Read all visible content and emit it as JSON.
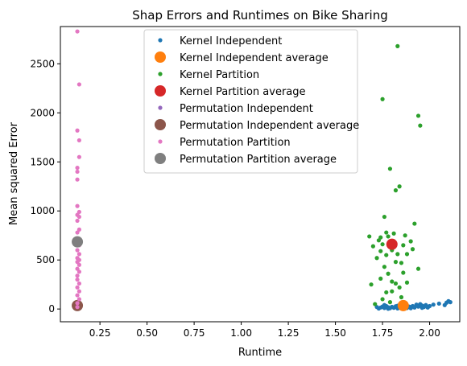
{
  "chart_data": {
    "type": "scatter",
    "title": "Shap Errors and Runtimes on Bike Sharing",
    "xlabel": "Runtime",
    "ylabel": "Mean squared Error",
    "xlim": [
      0.04,
      2.16
    ],
    "ylim": [
      -130,
      2880
    ],
    "xticks": [
      0.25,
      0.5,
      0.75,
      1.0,
      1.25,
      1.5,
      1.75,
      2.0
    ],
    "xtick_labels": [
      "0.25",
      "0.50",
      "0.75",
      "1.00",
      "1.25",
      "1.50",
      "1.75",
      "2.00"
    ],
    "yticks": [
      0,
      500,
      1000,
      1500,
      2000,
      2500
    ],
    "ytick_labels": [
      "0",
      "500",
      "1000",
      "1500",
      "2000",
      "2500"
    ],
    "grid": false,
    "legend_position": "top-center",
    "series": [
      {
        "name": "Kernel Independent",
        "color": "#1f77b4",
        "marker": "small",
        "points": [
          [
            1.72,
            20
          ],
          [
            1.73,
            5
          ],
          [
            1.74,
            15
          ],
          [
            1.75,
            25
          ],
          [
            1.76,
            10
          ],
          [
            1.77,
            30
          ],
          [
            1.78,
            18
          ],
          [
            1.79,
            8
          ],
          [
            1.8,
            22
          ],
          [
            1.81,
            12
          ],
          [
            1.82,
            28
          ],
          [
            1.83,
            6
          ],
          [
            1.84,
            16
          ],
          [
            1.85,
            35
          ],
          [
            1.86,
            14
          ],
          [
            1.87,
            40
          ],
          [
            1.88,
            10
          ],
          [
            1.89,
            25
          ],
          [
            1.9,
            20
          ],
          [
            1.91,
            30
          ],
          [
            1.92,
            15
          ],
          [
            1.93,
            45
          ],
          [
            1.94,
            25
          ],
          [
            1.95,
            50
          ],
          [
            1.96,
            35
          ],
          [
            1.97,
            20
          ],
          [
            1.98,
            40
          ],
          [
            1.99,
            15
          ],
          [
            2.0,
            30
          ],
          [
            2.02,
            45
          ],
          [
            2.05,
            55
          ],
          [
            2.08,
            40
          ],
          [
            2.09,
            65
          ],
          [
            2.1,
            80
          ],
          [
            2.11,
            70
          ],
          [
            1.76,
            40
          ],
          [
            1.78,
            3
          ],
          [
            1.83,
            33
          ],
          [
            1.9,
            8
          ],
          [
            1.96,
            12
          ]
        ]
      },
      {
        "name": "Kernel Independent average",
        "color": "#ff7f0e",
        "marker": "large",
        "points": [
          [
            1.86,
            35
          ]
        ]
      },
      {
        "name": "Kernel Partition",
        "color": "#2ca02c",
        "marker": "small",
        "points": [
          [
            1.83,
            2680
          ],
          [
            1.75,
            2140
          ],
          [
            1.94,
            1970
          ],
          [
            1.95,
            1870
          ],
          [
            1.79,
            1430
          ],
          [
            1.84,
            1250
          ],
          [
            1.82,
            1210
          ],
          [
            1.76,
            940
          ],
          [
            1.92,
            870
          ],
          [
            1.77,
            780
          ],
          [
            1.81,
            770
          ],
          [
            1.74,
            730
          ],
          [
            1.78,
            740
          ],
          [
            1.68,
            740
          ],
          [
            1.87,
            750
          ],
          [
            1.9,
            690
          ],
          [
            1.73,
            700
          ],
          [
            1.75,
            660
          ],
          [
            1.79,
            680
          ],
          [
            1.86,
            650
          ],
          [
            1.7,
            640
          ],
          [
            1.91,
            610
          ],
          [
            1.8,
            600
          ],
          [
            1.74,
            590
          ],
          [
            1.83,
            560
          ],
          [
            1.77,
            550
          ],
          [
            1.88,
            560
          ],
          [
            1.72,
            520
          ],
          [
            1.82,
            480
          ],
          [
            1.85,
            470
          ],
          [
            1.76,
            430
          ],
          [
            1.94,
            410
          ],
          [
            1.78,
            360
          ],
          [
            1.86,
            370
          ],
          [
            1.74,
            310
          ],
          [
            1.8,
            280
          ],
          [
            1.82,
            260
          ],
          [
            1.88,
            270
          ],
          [
            1.69,
            250
          ],
          [
            1.84,
            220
          ],
          [
            1.8,
            180
          ],
          [
            1.77,
            170
          ],
          [
            1.85,
            120
          ],
          [
            1.75,
            100
          ],
          [
            1.79,
            70
          ],
          [
            1.71,
            50
          ]
        ]
      },
      {
        "name": "Kernel Partition average",
        "color": "#d62728",
        "marker": "large",
        "points": [
          [
            1.8,
            660
          ]
        ]
      },
      {
        "name": "Permutation Independent",
        "color": "#9467bd",
        "marker": "small",
        "points": [
          [
            0.13,
            10
          ],
          [
            0.14,
            30
          ],
          [
            0.13,
            50
          ],
          [
            0.14,
            20
          ],
          [
            0.12,
            40
          ],
          [
            0.13,
            60
          ],
          [
            0.14,
            15
          ]
        ]
      },
      {
        "name": "Permutation Independent average",
        "color": "#8c564b",
        "marker": "large",
        "points": [
          [
            0.13,
            35
          ]
        ]
      },
      {
        "name": "Permutation Partition",
        "color": "#e377c2",
        "marker": "small",
        "points": [
          [
            0.13,
            2830
          ],
          [
            0.14,
            2290
          ],
          [
            0.13,
            1820
          ],
          [
            0.14,
            1720
          ],
          [
            0.14,
            1550
          ],
          [
            0.13,
            1440
          ],
          [
            0.13,
            1400
          ],
          [
            0.13,
            1320
          ],
          [
            0.13,
            1050
          ],
          [
            0.14,
            990
          ],
          [
            0.13,
            960
          ],
          [
            0.14,
            940
          ],
          [
            0.13,
            900
          ],
          [
            0.14,
            810
          ],
          [
            0.13,
            780
          ],
          [
            0.13,
            720
          ],
          [
            0.14,
            650
          ],
          [
            0.13,
            600
          ],
          [
            0.14,
            560
          ],
          [
            0.13,
            520
          ],
          [
            0.14,
            500
          ],
          [
            0.13,
            480
          ],
          [
            0.14,
            450
          ],
          [
            0.13,
            410
          ],
          [
            0.14,
            380
          ],
          [
            0.13,
            340
          ],
          [
            0.13,
            300
          ],
          [
            0.14,
            260
          ],
          [
            0.13,
            220
          ],
          [
            0.14,
            180
          ],
          [
            0.13,
            140
          ],
          [
            0.14,
            100
          ],
          [
            0.13,
            60
          ],
          [
            0.13,
            20
          ]
        ]
      },
      {
        "name": "Permutation Partition average",
        "color": "#7f7f7f",
        "marker": "large",
        "points": [
          [
            0.13,
            685
          ]
        ]
      }
    ]
  }
}
